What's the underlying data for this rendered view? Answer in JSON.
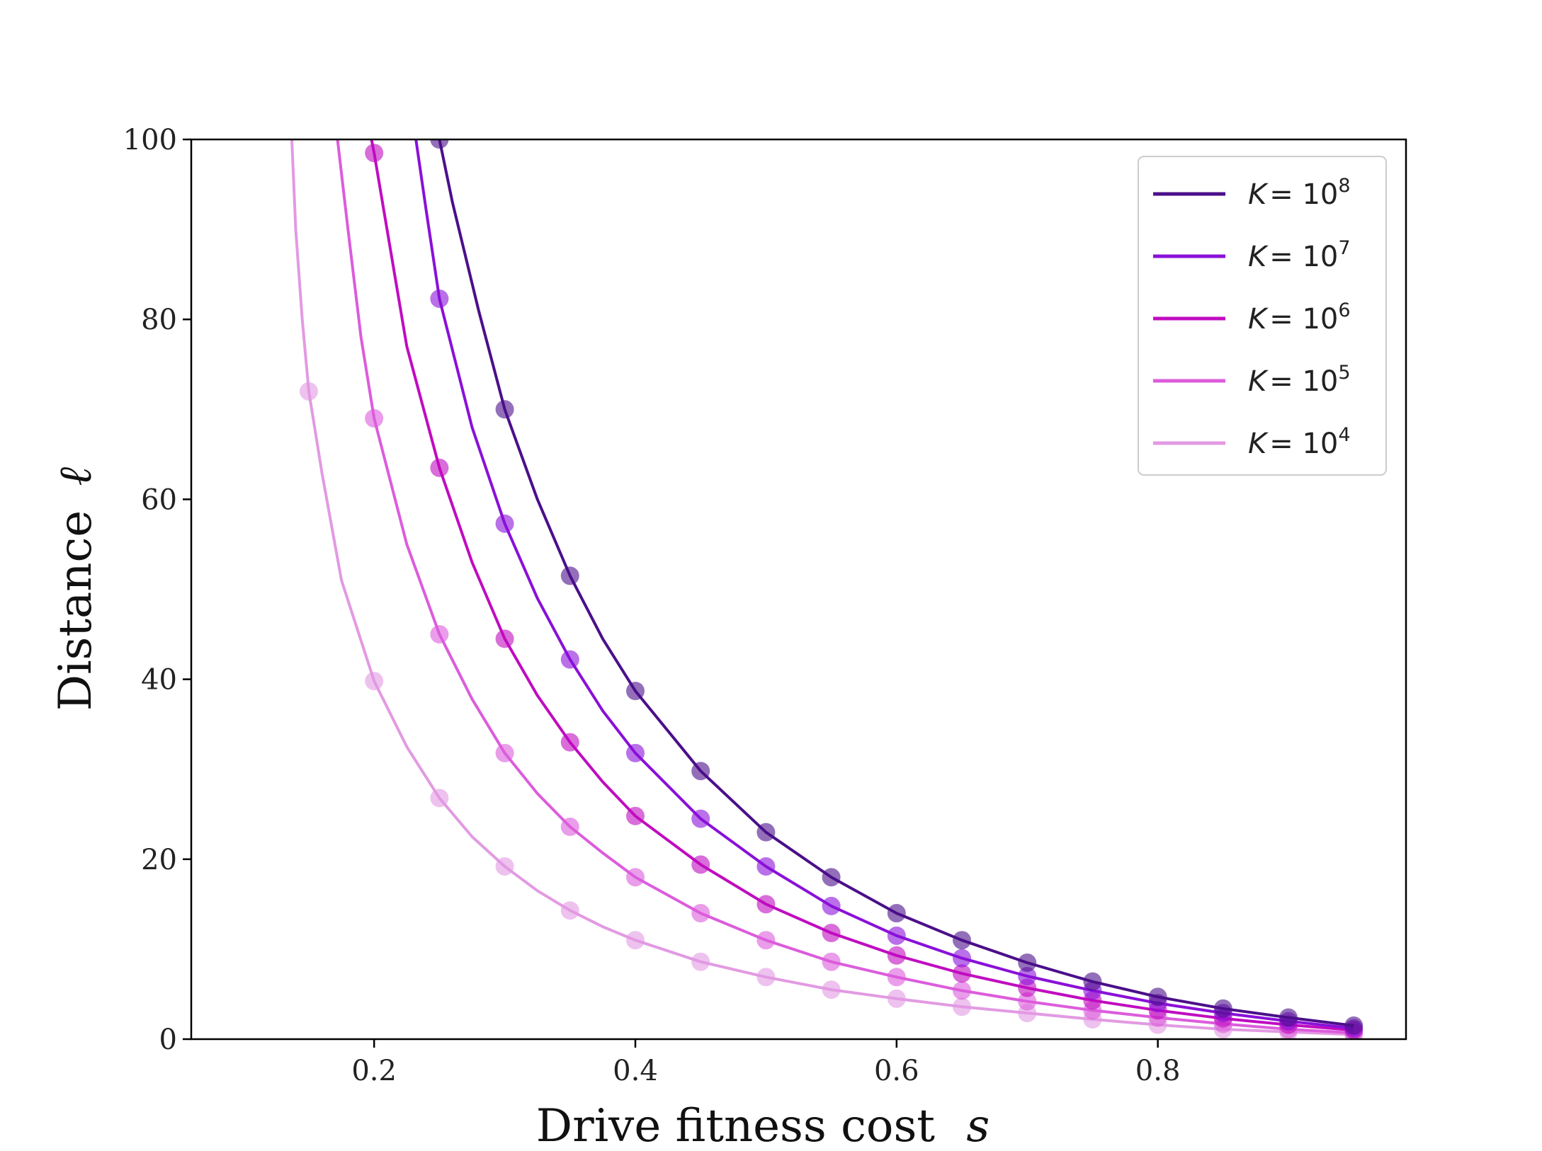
{
  "chart_data": {
    "type": "line",
    "xlabel": "Drive fitness cost",
    "xlabel_var": "s",
    "ylabel": "Distance",
    "ylabel_var": "ℓ",
    "xlim": [
      0.06,
      0.99
    ],
    "ylim": [
      0,
      100
    ],
    "xticks": [
      0.2,
      0.4,
      0.6,
      0.8
    ],
    "xtick_labels": [
      "0.2",
      "0.4",
      "0.6",
      "0.8"
    ],
    "yticks": [
      0,
      20,
      40,
      60,
      80,
      100
    ],
    "ytick_labels": [
      "0",
      "20",
      "40",
      "60",
      "80",
      "100"
    ],
    "grid": false,
    "legend_position": "top-right",
    "series": [
      {
        "name": "K = 10^8",
        "legend_var": "K",
        "legend_eq": "= 10",
        "legend_exp": "8",
        "color": "#4b0f8a",
        "curve": [
          [
            0.25,
            100
          ],
          [
            0.26,
            93
          ],
          [
            0.28,
            81
          ],
          [
            0.3,
            70
          ],
          [
            0.325,
            60
          ],
          [
            0.35,
            51.5
          ],
          [
            0.375,
            44.5
          ],
          [
            0.4,
            38.7
          ],
          [
            0.45,
            29.8
          ],
          [
            0.5,
            23
          ],
          [
            0.55,
            18
          ],
          [
            0.6,
            14
          ],
          [
            0.65,
            11
          ],
          [
            0.7,
            8.5
          ],
          [
            0.75,
            6.4
          ],
          [
            0.8,
            4.7
          ],
          [
            0.85,
            3.4
          ],
          [
            0.9,
            2.4
          ],
          [
            0.95,
            1.5
          ]
        ],
        "points": [
          [
            0.25,
            100
          ],
          [
            0.3,
            70
          ],
          [
            0.35,
            51.5
          ],
          [
            0.4,
            38.7
          ],
          [
            0.45,
            29.8
          ],
          [
            0.5,
            23
          ],
          [
            0.55,
            18
          ],
          [
            0.6,
            14
          ],
          [
            0.65,
            11
          ],
          [
            0.7,
            8.5
          ],
          [
            0.75,
            6.4
          ],
          [
            0.8,
            4.7
          ],
          [
            0.85,
            3.4
          ],
          [
            0.9,
            2.4
          ],
          [
            0.95,
            1.5
          ]
        ]
      },
      {
        "name": "K = 10^7",
        "legend_var": "K",
        "legend_eq": "= 10",
        "legend_exp": "7",
        "color": "#8a10d8",
        "curve": [
          [
            0.232,
            100
          ],
          [
            0.24,
            92
          ],
          [
            0.25,
            82.3
          ],
          [
            0.275,
            68
          ],
          [
            0.3,
            57.3
          ],
          [
            0.325,
            49
          ],
          [
            0.35,
            42.2
          ],
          [
            0.375,
            36.5
          ],
          [
            0.4,
            31.8
          ],
          [
            0.45,
            24.5
          ],
          [
            0.5,
            19.2
          ],
          [
            0.55,
            14.8
          ],
          [
            0.6,
            11.5
          ],
          [
            0.65,
            9
          ],
          [
            0.7,
            7
          ],
          [
            0.75,
            5.4
          ],
          [
            0.8,
            4
          ],
          [
            0.85,
            2.9
          ],
          [
            0.9,
            2
          ],
          [
            0.95,
            1.2
          ]
        ],
        "points": [
          [
            0.25,
            82.3
          ],
          [
            0.3,
            57.3
          ],
          [
            0.35,
            42.2
          ],
          [
            0.4,
            31.8
          ],
          [
            0.45,
            24.5
          ],
          [
            0.5,
            19.2
          ],
          [
            0.55,
            14.8
          ],
          [
            0.6,
            11.5
          ],
          [
            0.65,
            9
          ],
          [
            0.7,
            7
          ],
          [
            0.75,
            5.4
          ],
          [
            0.8,
            4
          ],
          [
            0.85,
            2.9
          ],
          [
            0.9,
            2
          ],
          [
            0.95,
            1.2
          ]
        ]
      },
      {
        "name": "K = 10^6",
        "legend_var": "K",
        "legend_eq": "= 10",
        "legend_exp": "6",
        "color": "#c00cc0",
        "curve": [
          [
            0.198,
            100
          ],
          [
            0.2,
            98.5
          ],
          [
            0.225,
            77
          ],
          [
            0.25,
            63.5
          ],
          [
            0.275,
            53
          ],
          [
            0.3,
            44.5
          ],
          [
            0.325,
            38.2
          ],
          [
            0.35,
            33
          ],
          [
            0.375,
            28.6
          ],
          [
            0.4,
            24.8
          ],
          [
            0.45,
            19.4
          ],
          [
            0.5,
            15
          ],
          [
            0.55,
            11.8
          ],
          [
            0.6,
            9.3
          ],
          [
            0.65,
            7.3
          ],
          [
            0.7,
            5.7
          ],
          [
            0.75,
            4.3
          ],
          [
            0.8,
            3.2
          ],
          [
            0.85,
            2.3
          ],
          [
            0.9,
            1.6
          ],
          [
            0.95,
            1
          ]
        ],
        "points": [
          [
            0.2,
            98.5
          ],
          [
            0.25,
            63.5
          ],
          [
            0.3,
            44.5
          ],
          [
            0.35,
            33
          ],
          [
            0.4,
            24.8
          ],
          [
            0.45,
            19.4
          ],
          [
            0.5,
            15
          ],
          [
            0.55,
            11.8
          ],
          [
            0.6,
            9.3
          ],
          [
            0.65,
            7.3
          ],
          [
            0.7,
            5.7
          ],
          [
            0.75,
            4.3
          ],
          [
            0.8,
            3.2
          ],
          [
            0.85,
            2.3
          ],
          [
            0.9,
            1.6
          ],
          [
            0.95,
            1
          ]
        ]
      },
      {
        "name": "K = 10^5",
        "legend_var": "K",
        "legend_eq": "= 10",
        "legend_exp": "5",
        "color": "#dc5cdc",
        "curve": [
          [
            0.172,
            100
          ],
          [
            0.18,
            90
          ],
          [
            0.19,
            78
          ],
          [
            0.2,
            69
          ],
          [
            0.225,
            55
          ],
          [
            0.25,
            45
          ],
          [
            0.275,
            37.8
          ],
          [
            0.3,
            31.8
          ],
          [
            0.325,
            27.3
          ],
          [
            0.35,
            23.6
          ],
          [
            0.375,
            20.7
          ],
          [
            0.4,
            18
          ],
          [
            0.45,
            14
          ],
          [
            0.5,
            11
          ],
          [
            0.55,
            8.6
          ],
          [
            0.6,
            6.9
          ],
          [
            0.65,
            5.4
          ],
          [
            0.7,
            4.2
          ],
          [
            0.75,
            3.2
          ],
          [
            0.8,
            2.4
          ],
          [
            0.85,
            1.7
          ],
          [
            0.9,
            1.1
          ],
          [
            0.95,
            0.7
          ]
        ],
        "points": [
          [
            0.2,
            69
          ],
          [
            0.25,
            45
          ],
          [
            0.3,
            31.8
          ],
          [
            0.35,
            23.6
          ],
          [
            0.4,
            18
          ],
          [
            0.45,
            14
          ],
          [
            0.5,
            11
          ],
          [
            0.55,
            8.6
          ],
          [
            0.6,
            6.9
          ],
          [
            0.65,
            5.4
          ],
          [
            0.7,
            4.2
          ],
          [
            0.75,
            3.2
          ],
          [
            0.8,
            2.4
          ],
          [
            0.85,
            1.7
          ],
          [
            0.9,
            1.1
          ],
          [
            0.95,
            0.7
          ]
        ]
      },
      {
        "name": "K = 10^4",
        "legend_var": "K",
        "legend_eq": "= 10",
        "legend_exp": "4",
        "color": "#e29ae2",
        "curve": [
          [
            0.137,
            100
          ],
          [
            0.14,
            90
          ],
          [
            0.145,
            80
          ],
          [
            0.15,
            72
          ],
          [
            0.16,
            63
          ],
          [
            0.175,
            51
          ],
          [
            0.2,
            39.8
          ],
          [
            0.225,
            32.5
          ],
          [
            0.25,
            26.8
          ],
          [
            0.275,
            22.5
          ],
          [
            0.3,
            19.2
          ],
          [
            0.325,
            16.5
          ],
          [
            0.35,
            14.3
          ],
          [
            0.375,
            12.5
          ],
          [
            0.4,
            11
          ],
          [
            0.45,
            8.6
          ],
          [
            0.5,
            6.9
          ],
          [
            0.55,
            5.5
          ],
          [
            0.6,
            4.5
          ],
          [
            0.65,
            3.6
          ],
          [
            0.7,
            2.9
          ],
          [
            0.75,
            2.2
          ],
          [
            0.8,
            1.6
          ],
          [
            0.85,
            1.1
          ],
          [
            0.9,
            0.8
          ],
          [
            0.95,
            0.5
          ]
        ],
        "points": [
          [
            0.15,
            72
          ],
          [
            0.2,
            39.8
          ],
          [
            0.25,
            26.8
          ],
          [
            0.3,
            19.2
          ],
          [
            0.35,
            14.3
          ],
          [
            0.4,
            11
          ],
          [
            0.45,
            8.6
          ],
          [
            0.5,
            6.9
          ],
          [
            0.55,
            5.5
          ],
          [
            0.6,
            4.5
          ],
          [
            0.65,
            3.6
          ],
          [
            0.7,
            2.9
          ],
          [
            0.75,
            2.2
          ],
          [
            0.8,
            1.6
          ],
          [
            0.85,
            1.1
          ],
          [
            0.9,
            0.8
          ],
          [
            0.95,
            0.5
          ]
        ]
      }
    ]
  }
}
